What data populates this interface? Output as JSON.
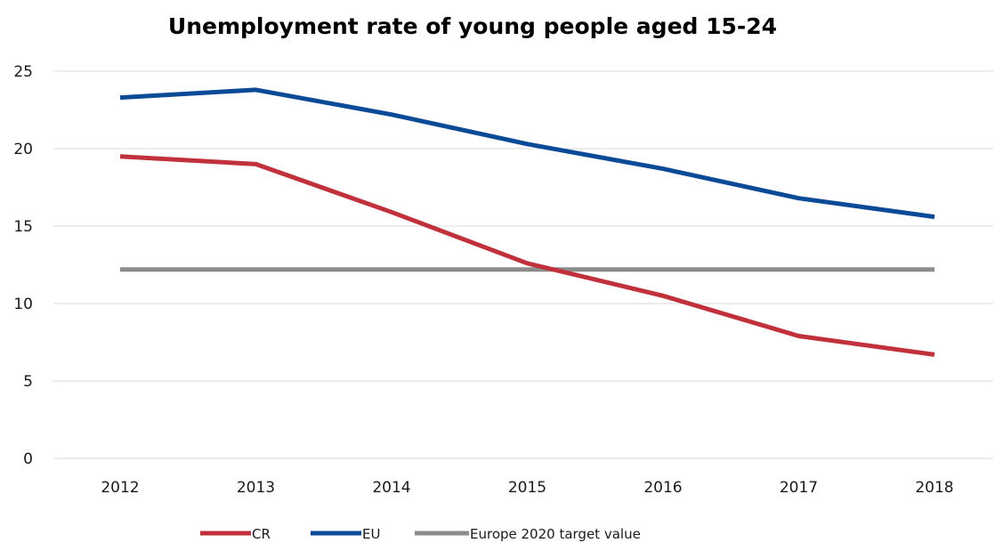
{
  "chart_data": {
    "type": "line",
    "title": "Unemployment rate of young people aged 15-24",
    "xlabel": "",
    "ylabel": "",
    "categories": [
      "2012",
      "2013",
      "2014",
      "2015",
      "2016",
      "2017",
      "2018"
    ],
    "yticks": [
      "0",
      "5",
      "10",
      "15",
      "20",
      "25"
    ],
    "ylim": [
      0,
      25
    ],
    "grid": true,
    "legend_position": "bottom",
    "series": [
      {
        "name": "CR",
        "color": "#c0313c",
        "values": [
          19.5,
          19.0,
          15.9,
          12.6,
          10.5,
          7.9,
          6.7
        ]
      },
      {
        "name": "EU",
        "color": "#0b4a97",
        "values": [
          23.3,
          23.8,
          22.2,
          20.3,
          18.7,
          16.8,
          15.6
        ]
      },
      {
        "name": "Europe 2020 target value",
        "color": "#8c8c8c",
        "values": [
          12.2,
          12.2,
          12.2,
          12.2,
          12.2,
          12.2,
          12.2
        ]
      }
    ]
  }
}
